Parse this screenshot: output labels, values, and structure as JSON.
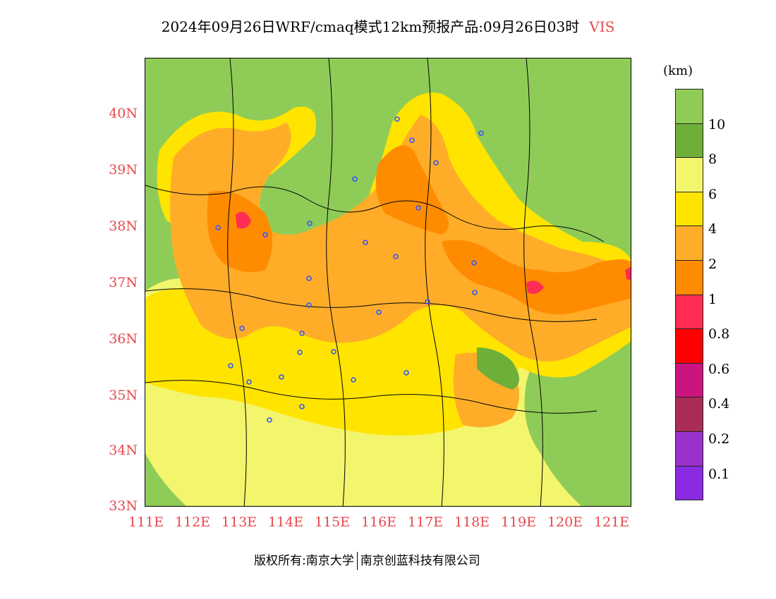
{
  "title": {
    "main": "2024年09月26日WRF/cmaq模式12km预报产品:09月26日03时",
    "variable": "VIS"
  },
  "axes": {
    "y_ticks": [
      "40N",
      "39N",
      "38N",
      "37N",
      "36N",
      "35N",
      "34N",
      "33N"
    ],
    "x_ticks": [
      "111E",
      "112E",
      "113E",
      "114E",
      "115E",
      "116E",
      "117E",
      "118E",
      "119E",
      "120E",
      "121E"
    ]
  },
  "legend": {
    "unit": "(km)",
    "items": [
      {
        "label": "10",
        "color": "#8fcc57"
      },
      {
        "label": "8",
        "color": "#6eaf3a"
      },
      {
        "label": "6",
        "color": "#f3f56d"
      },
      {
        "label": "4",
        "color": "#ffe400"
      },
      {
        "label": "2",
        "color": "#ffad29"
      },
      {
        "label": "1",
        "color": "#ff8c00"
      },
      {
        "label": "0.8",
        "color": "#ff2d54"
      },
      {
        "label": "0.6",
        "color": "#ff0000"
      },
      {
        "label": "0.4",
        "color": "#cc1480"
      },
      {
        "label": "0.2",
        "color": "#aa2d55"
      },
      {
        "label": "0.1",
        "color": "#9933cc"
      },
      {
        "label": "",
        "color": "#8a2be2"
      }
    ]
  },
  "footer": {
    "left": "版权所有:南京大学",
    "right": "南京创蓝科技有限公司"
  }
}
